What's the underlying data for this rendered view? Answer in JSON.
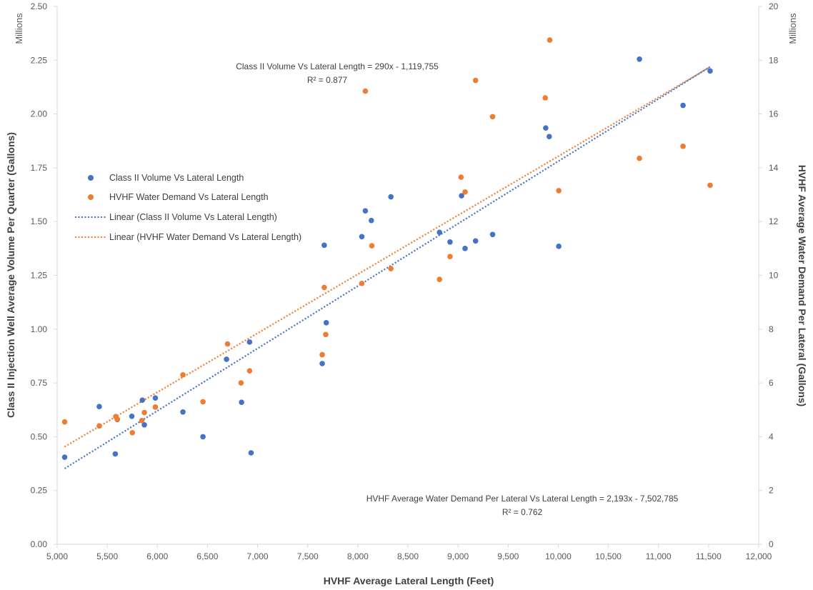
{
  "chart_data": {
    "type": "scatter",
    "xlabel": "HVHF Average Lateral Length (Feet)",
    "ylabel_left": "Class II Injection Well Average Volume Per Quarter (Gallons)",
    "ylabel_right": "HVHF Average Water Demand Per Lateral (Gallons)",
    "unit_left": "Millions",
    "unit_right": "Millions",
    "xlim": [
      5000,
      12000
    ],
    "ylim_left": [
      0,
      2.5
    ],
    "ylim_right": [
      0,
      20
    ],
    "x_ticks": [
      "5,000",
      "5,500",
      "6,000",
      "6,500",
      "7,000",
      "7,500",
      "8,000",
      "8,500",
      "9,000",
      "9,500",
      "10,000",
      "10,500",
      "11,000",
      "11,500",
      "12,000"
    ],
    "y_left_ticks": [
      "0.00",
      "0.25",
      "0.50",
      "0.75",
      "1.00",
      "1.25",
      "1.50",
      "1.75",
      "2.00",
      "2.25",
      "2.50"
    ],
    "y_right_ticks": [
      "0",
      "2",
      "4",
      "6",
      "8",
      "10",
      "12",
      "14",
      "16",
      "18",
      "20"
    ],
    "series": [
      {
        "name": "Class II Volume Vs Lateral Length",
        "axis": "left",
        "color": "#4472C4",
        "x": [
          5075,
          5420,
          5580,
          5600,
          5745,
          5850,
          5870,
          5980,
          6255,
          6455,
          6690,
          6840,
          6920,
          6935,
          7645,
          7665,
          7685,
          8040,
          8075,
          8135,
          8330,
          8815,
          8920,
          9035,
          9070,
          9175,
          9345,
          9875,
          9910,
          10005,
          10810,
          11245,
          11515
        ],
        "values": [
          0.405,
          0.64,
          0.42,
          0.58,
          0.595,
          0.67,
          0.555,
          0.68,
          0.615,
          0.5,
          0.86,
          0.66,
          0.94,
          0.425,
          0.84,
          1.39,
          1.03,
          1.43,
          1.55,
          1.505,
          1.615,
          1.45,
          1.405,
          1.62,
          1.375,
          1.41,
          1.44,
          1.935,
          1.895,
          1.385,
          2.255,
          2.04,
          2.2
        ]
      },
      {
        "name": "HVHF Water Demand Vs Lateral Length",
        "axis": "right",
        "color": "#ED7D31",
        "x": [
          5075,
          5420,
          5585,
          5600,
          5750,
          5845,
          5870,
          5980,
          6255,
          6455,
          6700,
          6835,
          6920,
          7645,
          7665,
          7680,
          8040,
          8075,
          8140,
          8330,
          8815,
          8920,
          9030,
          9070,
          9175,
          9345,
          9870,
          9915,
          10005,
          10810,
          11245,
          11515
        ],
        "values": [
          4.55,
          4.4,
          4.75,
          4.65,
          4.15,
          4.6,
          4.9,
          5.1,
          6.3,
          5.3,
          7.45,
          6.0,
          6.45,
          7.05,
          9.55,
          7.8,
          9.7,
          16.85,
          11.1,
          10.25,
          9.85,
          10.7,
          13.65,
          13.1,
          17.25,
          15.9,
          16.6,
          18.75,
          13.15,
          14.35,
          14.8,
          13.35
        ]
      }
    ],
    "trendlines": [
      {
        "name": "Linear (Class II Volume Vs Lateral Length)",
        "axis": "left",
        "color": "#4472C4",
        "slope": 290,
        "intercept": -1119755,
        "scale": 1000000,
        "x_range": [
          5075,
          11515
        ]
      },
      {
        "name": "Linear (HVHF Water Demand Vs Lateral Length)",
        "axis": "right",
        "color": "#ED7D31",
        "slope": 2193,
        "intercept": -7502785,
        "scale": 1000000,
        "x_range": [
          5075,
          11515
        ]
      }
    ],
    "annotations": {
      "class2_equation": "Class II Volume Vs Lateral Length = 290x  - 1,119,755",
      "class2_r2": "R² = 0.877",
      "hvhf_equation": "HVHF Average Water Demand Per Lateral Vs Lateral Length = 2,193x  - 7,502,785",
      "hvhf_r2": "R² = 0.762"
    },
    "legend": {
      "position": "middle-left",
      "items": [
        "Class II Volume Vs Lateral Length",
        "HVHF Water Demand Vs Lateral Length",
        "Linear (Class II Volume Vs Lateral Length)",
        "Linear (HVHF Water Demand Vs Lateral Length)"
      ]
    },
    "grid": false
  }
}
